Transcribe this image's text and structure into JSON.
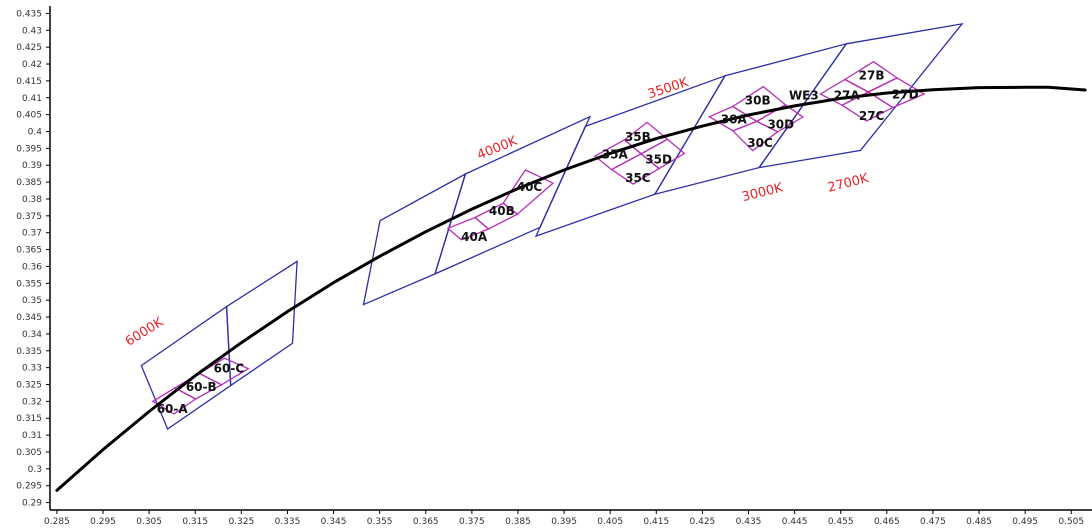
{
  "chart_data": {
    "type": "line",
    "x_ticks": [
      "0.285",
      "0.295",
      "0.305",
      "0.315",
      "0.325",
      "0.335",
      "0.345",
      "0.355",
      "0.365",
      "0.375",
      "0.385",
      "0.395",
      "0.405",
      "0.415",
      "0.425",
      "0.435",
      "0.445",
      "0.455",
      "0.465",
      "0.475",
      "0.485",
      "0.495",
      "0.505"
    ],
    "y_ticks": [
      "0.29",
      "0.295",
      "0.3",
      "0.305",
      "0.31",
      "0.315",
      "0.32",
      "0.325",
      "0.33",
      "0.335",
      "0.34",
      "0.345",
      "0.35",
      "0.355",
      "0.36",
      "0.365",
      "0.37",
      "0.375",
      "0.38",
      "0.385",
      "0.39",
      "0.395",
      "0.4",
      "0.405",
      "0.41",
      "0.415",
      "0.42",
      "0.425",
      "0.43",
      "0.435"
    ],
    "xlim": [
      0.2835,
      0.5095
    ],
    "ylim": [
      0.2878,
      0.4372
    ],
    "grid": false,
    "colors": {
      "locus": "#000000",
      "cct_box": "#2e2ea8",
      "bin": "#b52fb5",
      "cct_text": "#e8232a"
    },
    "locus": [
      [
        0.285,
        0.2936
      ],
      [
        0.295,
        0.3057
      ],
      [
        0.305,
        0.317
      ],
      [
        0.315,
        0.3276
      ],
      [
        0.325,
        0.3374
      ],
      [
        0.335,
        0.3466
      ],
      [
        0.345,
        0.3552
      ],
      [
        0.355,
        0.363
      ],
      [
        0.365,
        0.3703
      ],
      [
        0.375,
        0.377
      ],
      [
        0.385,
        0.3831
      ],
      [
        0.395,
        0.3886
      ],
      [
        0.405,
        0.3935
      ],
      [
        0.415,
        0.3979
      ],
      [
        0.425,
        0.4016
      ],
      [
        0.435,
        0.4049
      ],
      [
        0.445,
        0.4076
      ],
      [
        0.455,
        0.4098
      ],
      [
        0.465,
        0.4114
      ],
      [
        0.475,
        0.4124
      ],
      [
        0.485,
        0.413
      ],
      [
        0.495,
        0.4131
      ],
      [
        0.5,
        0.4131
      ],
      [
        0.508,
        0.4123
      ]
    ],
    "cct_regions": [
      {
        "name": "6000K",
        "points": [
          [
            0.3033,
            0.3306
          ],
          [
            0.3218,
            0.3481
          ],
          [
            0.3227,
            0.3247
          ],
          [
            0.309,
            0.3118
          ]
        ]
      },
      {
        "name": "6000K-2",
        "points": [
          [
            0.3218,
            0.3481
          ],
          [
            0.3371,
            0.3615
          ],
          [
            0.3361,
            0.3372
          ],
          [
            0.3227,
            0.3247
          ]
        ]
      },
      {
        "name": "4000K",
        "points": [
          [
            0.3551,
            0.3736
          ],
          [
            0.3736,
            0.3874
          ],
          [
            0.367,
            0.3578
          ],
          [
            0.3515,
            0.3487
          ]
        ]
      },
      {
        "name": "4000K-2",
        "points": [
          [
            0.3736,
            0.3874
          ],
          [
            0.4006,
            0.4044
          ],
          [
            0.3898,
            0.3716
          ],
          [
            0.367,
            0.3578
          ]
        ]
      },
      {
        "name": "3500K",
        "points": [
          [
            0.3996,
            0.4015
          ],
          [
            0.4299,
            0.4165
          ],
          [
            0.4147,
            0.3814
          ],
          [
            0.3889,
            0.369
          ]
        ]
      },
      {
        "name": "3000K",
        "points": [
          [
            0.4299,
            0.4165
          ],
          [
            0.4562,
            0.426
          ],
          [
            0.4373,
            0.3893
          ],
          [
            0.4147,
            0.3814
          ]
        ]
      },
      {
        "name": "2700K",
        "points": [
          [
            0.4562,
            0.426
          ],
          [
            0.4813,
            0.4319
          ],
          [
            0.4593,
            0.3944
          ],
          [
            0.4373,
            0.3893
          ]
        ]
      }
    ],
    "bins": [
      {
        "name": "60-A",
        "points": [
          [
            0.3058,
            0.32
          ],
          [
            0.3106,
            0.324
          ],
          [
            0.3151,
            0.3207
          ],
          [
            0.3104,
            0.3163
          ]
        ]
      },
      {
        "name": "60-B",
        "points": [
          [
            0.3106,
            0.324
          ],
          [
            0.3159,
            0.3283
          ],
          [
            0.3207,
            0.3249
          ],
          [
            0.3151,
            0.3207
          ]
        ]
      },
      {
        "name": "60-C",
        "points": [
          [
            0.3159,
            0.3283
          ],
          [
            0.3213,
            0.3328
          ],
          [
            0.3265,
            0.3297
          ],
          [
            0.3207,
            0.3249
          ]
        ]
      },
      {
        "name": "40A",
        "points": [
          [
            0.3698,
            0.3713
          ],
          [
            0.3757,
            0.3745
          ],
          [
            0.3786,
            0.3711
          ],
          [
            0.3727,
            0.3679
          ]
        ]
      },
      {
        "name": "40B",
        "points": [
          [
            0.3757,
            0.3745
          ],
          [
            0.3818,
            0.3787
          ],
          [
            0.3849,
            0.3755
          ],
          [
            0.3786,
            0.3711
          ]
        ]
      },
      {
        "name": "40C",
        "points": [
          [
            0.3818,
            0.3787
          ],
          [
            0.3866,
            0.3886
          ],
          [
            0.3926,
            0.3847
          ],
          [
            0.3849,
            0.3755
          ]
        ]
      },
      {
        "name": "35A",
        "points": [
          [
            0.4017,
            0.3927
          ],
          [
            0.4081,
            0.3975
          ],
          [
            0.4117,
            0.3934
          ],
          [
            0.4053,
            0.3887
          ]
        ]
      },
      {
        "name": "35B",
        "points": [
          [
            0.4081,
            0.3975
          ],
          [
            0.413,
            0.4027
          ],
          [
            0.4174,
            0.3977
          ],
          [
            0.4117,
            0.3934
          ]
        ]
      },
      {
        "name": "35D",
        "points": [
          [
            0.4117,
            0.3934
          ],
          [
            0.4174,
            0.3977
          ],
          [
            0.4211,
            0.3935
          ],
          [
            0.4156,
            0.389
          ]
        ]
      },
      {
        "name": "35C",
        "points": [
          [
            0.4053,
            0.3887
          ],
          [
            0.4117,
            0.3934
          ],
          [
            0.4156,
            0.389
          ],
          [
            0.41,
            0.3844
          ]
        ]
      },
      {
        "name": "30A",
        "points": [
          [
            0.4265,
            0.4044
          ],
          [
            0.4316,
            0.4074
          ],
          [
            0.4368,
            0.403
          ],
          [
            0.4316,
            0.4002
          ]
        ]
      },
      {
        "name": "30B",
        "points": [
          [
            0.4316,
            0.4074
          ],
          [
            0.4382,
            0.4133
          ],
          [
            0.443,
            0.4079
          ],
          [
            0.4368,
            0.403
          ]
        ]
      },
      {
        "name": "30D",
        "points": [
          [
            0.4368,
            0.403
          ],
          [
            0.443,
            0.4079
          ],
          [
            0.4468,
            0.4043
          ],
          [
            0.4413,
            0.3999
          ]
        ]
      },
      {
        "name": "30C",
        "points": [
          [
            0.4316,
            0.4002
          ],
          [
            0.4368,
            0.403
          ],
          [
            0.4413,
            0.3999
          ],
          [
            0.4359,
            0.3943
          ]
        ]
      },
      {
        "name": "27A",
        "points": [
          [
            0.4506,
            0.4111
          ],
          [
            0.4559,
            0.4154
          ],
          [
            0.461,
            0.4117
          ],
          [
            0.4553,
            0.4078
          ]
        ]
      },
      {
        "name": "27B",
        "points": [
          [
            0.4559,
            0.4154
          ],
          [
            0.4621,
            0.4207
          ],
          [
            0.4672,
            0.4159
          ],
          [
            0.461,
            0.4117
          ]
        ]
      },
      {
        "name": "27D",
        "points": [
          [
            0.461,
            0.4117
          ],
          [
            0.4672,
            0.4159
          ],
          [
            0.4731,
            0.4111
          ],
          [
            0.4663,
            0.4071
          ]
        ]
      },
      {
        "name": "27C",
        "points": [
          [
            0.4553,
            0.4078
          ],
          [
            0.461,
            0.4117
          ],
          [
            0.4663,
            0.4071
          ],
          [
            0.4606,
            0.4031
          ]
        ]
      }
    ],
    "cct_labels": [
      {
        "text": "6000K",
        "x": 0.3044,
        "y": 0.3396,
        "rotate": -32
      },
      {
        "text": "4000K",
        "x": 0.3808,
        "y": 0.394,
        "rotate": -22
      },
      {
        "text": "3500K",
        "x": 0.4178,
        "y": 0.4117,
        "rotate": -18
      },
      {
        "text": "3000K",
        "x": 0.4382,
        "y": 0.3808,
        "rotate": -14
      },
      {
        "text": "2700K",
        "x": 0.4568,
        "y": 0.3836,
        "rotate": -14
      }
    ],
    "bin_labels": [
      {
        "text": "60-A",
        "x": 0.31,
        "y": 0.3178
      },
      {
        "text": "60-B",
        "x": 0.3163,
        "y": 0.3243
      },
      {
        "text": "60-C",
        "x": 0.3223,
        "y": 0.3297
      },
      {
        "text": "40A",
        "x": 0.3755,
        "y": 0.3687
      },
      {
        "text": "40B",
        "x": 0.3815,
        "y": 0.3765
      },
      {
        "text": "40C",
        "x": 0.3875,
        "y": 0.3836
      },
      {
        "text": "35A",
        "x": 0.406,
        "y": 0.3932
      },
      {
        "text": "35B",
        "x": 0.411,
        "y": 0.3983
      },
      {
        "text": "35D",
        "x": 0.4155,
        "y": 0.3917
      },
      {
        "text": "35C",
        "x": 0.411,
        "y": 0.3862
      },
      {
        "text": "30A",
        "x": 0.4318,
        "y": 0.4036
      },
      {
        "text": "30B",
        "x": 0.437,
        "y": 0.4092
      },
      {
        "text": "WE3",
        "x": 0.447,
        "y": 0.4107
      },
      {
        "text": "30D",
        "x": 0.442,
        "y": 0.402
      },
      {
        "text": "30C",
        "x": 0.4375,
        "y": 0.3966
      },
      {
        "text": "27A",
        "x": 0.4563,
        "y": 0.4107
      },
      {
        "text": "27B",
        "x": 0.4617,
        "y": 0.4166
      },
      {
        "text": "27D",
        "x": 0.469,
        "y": 0.4109
      },
      {
        "text": "27C",
        "x": 0.4617,
        "y": 0.4046
      }
    ]
  }
}
